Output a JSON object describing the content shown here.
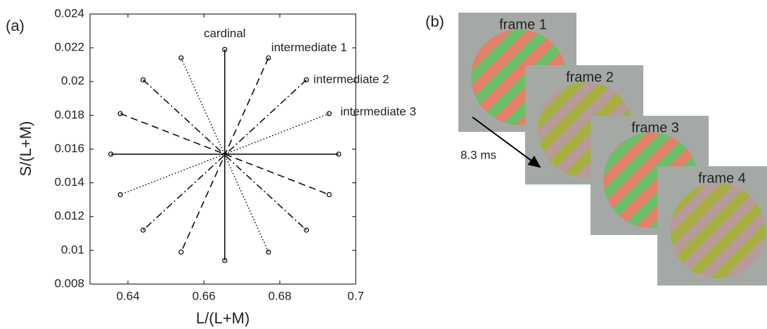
{
  "chart_data": {
    "type": "line",
    "panel_label": "(a)",
    "xlabel": "L/(L+M)",
    "ylabel": "S/(L+M)",
    "xlim": [
      0.63,
      0.7
    ],
    "ylim": [
      0.008,
      0.024
    ],
    "xticks": [
      0.64,
      0.66,
      0.68,
      0.7
    ],
    "yticks": [
      0.008,
      0.01,
      0.012,
      0.014,
      0.016,
      0.018,
      0.02,
      0.022,
      0.024
    ],
    "color": "#000000",
    "series": [
      {
        "name": "cardinal",
        "dash": "solid",
        "lines": [
          {
            "x": [
              0.6655,
              0.6655
            ],
            "y": [
              0.0219,
              0.0094
            ]
          },
          {
            "x": [
              0.6355,
              0.6955
            ],
            "y": [
              0.0157,
              0.0157
            ]
          }
        ]
      },
      {
        "name": "intermediate 1",
        "dash": "dashed",
        "lines": [
          {
            "x": [
              0.677,
              0.654
            ],
            "y": [
              0.0214,
              0.0099
            ]
          },
          {
            "x": [
              0.638,
              0.693
            ],
            "y": [
              0.0181,
              0.0133
            ]
          }
        ]
      },
      {
        "name": "intermediate 2",
        "dash": "dashdot",
        "lines": [
          {
            "x": [
              0.687,
              0.644
            ],
            "y": [
              0.0201,
              0.0112
            ]
          },
          {
            "x": [
              0.644,
              0.687
            ],
            "y": [
              0.0201,
              0.0112
            ]
          }
        ]
      },
      {
        "name": "intermediate 3",
        "dash": "dotted",
        "lines": [
          {
            "x": [
              0.693,
              0.638
            ],
            "y": [
              0.0181,
              0.0133
            ]
          },
          {
            "x": [
              0.654,
              0.677
            ],
            "y": [
              0.0214,
              0.0099
            ]
          }
        ]
      }
    ]
  },
  "panel_b": {
    "label": "(b)",
    "frames": [
      "frame 1",
      "frame 2",
      "frame 3",
      "frame 4"
    ],
    "interval": "8.3 ms"
  }
}
